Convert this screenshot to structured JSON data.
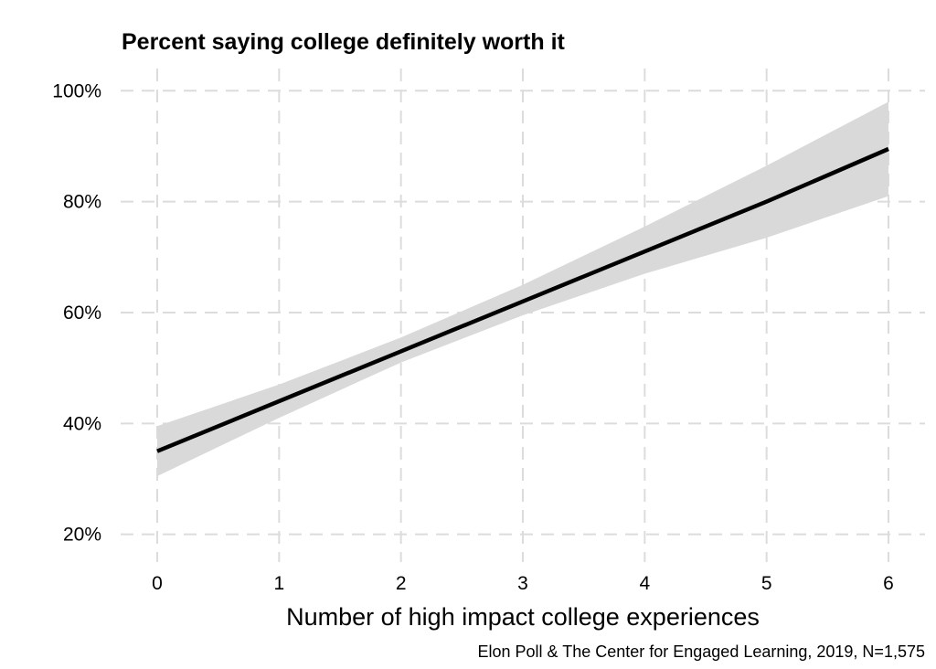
{
  "chart_data": {
    "type": "line",
    "title": "Percent saying college definitely worth it",
    "xlabel": "Number of high impact college experiences",
    "ylabel": "",
    "caption": "Elon Poll & The Center for Engaged Learning, 2019, N=1,575",
    "x": [
      0,
      1,
      2,
      3,
      4,
      5,
      6
    ],
    "series": [
      {
        "values": [
          35,
          44,
          53,
          62,
          71,
          80,
          89.5
        ],
        "ci_lower": [
          30.5,
          41,
          51,
          59.5,
          67,
          73.5,
          81
        ],
        "ci_upper": [
          39.5,
          47,
          55.5,
          65,
          75.5,
          86.5,
          98
        ],
        "color": "#000000",
        "band_color": "#d9d9d9"
      }
    ],
    "xlim": [
      -0.3,
      6.3
    ],
    "ylim": [
      15,
      104
    ],
    "x_ticks": [
      0,
      1,
      2,
      3,
      4,
      5,
      6
    ],
    "x_tick_labels": [
      "0",
      "1",
      "2",
      "3",
      "4",
      "5",
      "6"
    ],
    "y_ticks": [
      20,
      40,
      60,
      80,
      100
    ],
    "y_tick_labels": [
      "20%",
      "40%",
      "60%",
      "80%",
      "100%"
    ],
    "grid": true,
    "legend": "none"
  }
}
